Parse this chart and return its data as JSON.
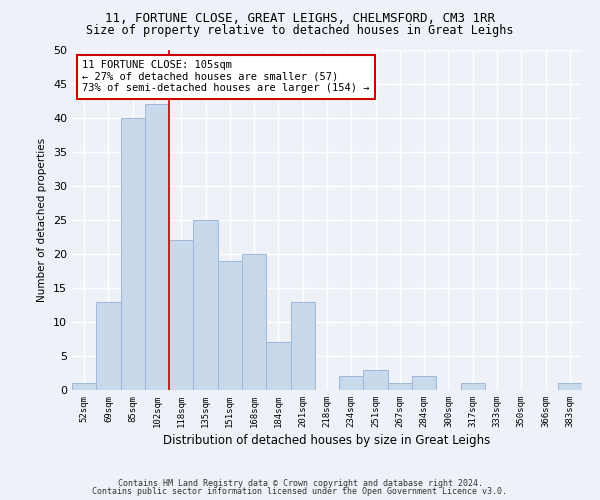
{
  "title_line1": "11, FORTUNE CLOSE, GREAT LEIGHS, CHELMSFORD, CM3 1RR",
  "title_line2": "Size of property relative to detached houses in Great Leighs",
  "xlabel": "Distribution of detached houses by size in Great Leighs",
  "ylabel": "Number of detached properties",
  "categories": [
    "52sqm",
    "69sqm",
    "85sqm",
    "102sqm",
    "118sqm",
    "135sqm",
    "151sqm",
    "168sqm",
    "184sqm",
    "201sqm",
    "218sqm",
    "234sqm",
    "251sqm",
    "267sqm",
    "284sqm",
    "300sqm",
    "317sqm",
    "333sqm",
    "350sqm",
    "366sqm",
    "383sqm"
  ],
  "values": [
    1,
    13,
    40,
    42,
    22,
    25,
    19,
    20,
    7,
    13,
    0,
    2,
    3,
    1,
    2,
    0,
    1,
    0,
    0,
    0,
    1
  ],
  "bar_color": "#c9d9ec",
  "bar_edge_color": "#a0b8d8",
  "vline_x_index": 3.5,
  "vline_color": "#cc0000",
  "annotation_line1": "11 FORTUNE CLOSE: 105sqm",
  "annotation_line2": "← 27% of detached houses are smaller (57)",
  "annotation_line3": "73% of semi-detached houses are larger (154) →",
  "annotation_box_color": "#ffffff",
  "annotation_box_edge": "#cc0000",
  "ylim": [
    0,
    50
  ],
  "yticks": [
    0,
    5,
    10,
    15,
    20,
    25,
    30,
    35,
    40,
    45,
    50
  ],
  "footer_line1": "Contains HM Land Registry data © Crown copyright and database right 2024.",
  "footer_line2": "Contains public sector information licensed under the Open Government Licence v3.0.",
  "background_color": "#eef2f8",
  "grid_color": "#ffffff",
  "title1_fontsize": 9,
  "title2_fontsize": 8.5,
  "xlabel_fontsize": 8.5,
  "ylabel_fontsize": 7.5,
  "xtick_fontsize": 6.5,
  "ytick_fontsize": 8,
  "annot_fontsize": 7.5,
  "footer_fontsize": 6
}
